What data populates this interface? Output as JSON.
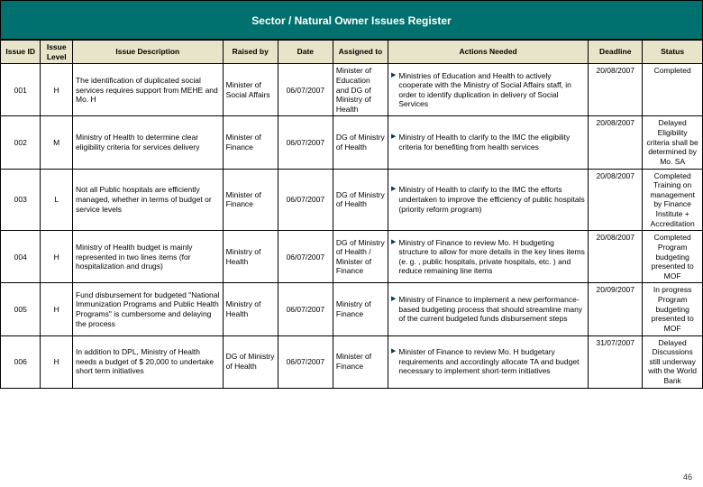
{
  "title": "Sector / Natural Owner Issues Register",
  "page_number": "46",
  "columns": {
    "id": "Issue ID",
    "level": "Issue Level",
    "desc": "Issue Description",
    "raised": "Raised by",
    "date": "Date",
    "assigned": "Assigned to",
    "actions": "Actions Needed",
    "deadline": "Deadline",
    "status": "Status"
  },
  "rows": [
    {
      "id": "001",
      "level": "H",
      "desc": "The identification of duplicated social services requires support from MEHE and Mo. H",
      "raised": "Minister of Social Affairs",
      "date": "06/07/2007",
      "assigned": "Minister of Education and DG of Ministry of Health",
      "action": "Ministries of Education and Health to actively cooperate with the Ministry of Social Affairs staff, in order to identify duplication in delivery of Social Services",
      "deadline": "20/08/2007",
      "status": "Completed"
    },
    {
      "id": "002",
      "level": "M",
      "desc": "Ministry of Health to determine clear eligibility criteria for services delivery",
      "raised": "Minister of Finance",
      "date": "06/07/2007",
      "assigned": "DG of Ministry of Health",
      "action": "Ministry of Health to clarify to the IMC the eligibility criteria for benefiting from health services",
      "deadline": "20/08/2007",
      "status": "Delayed Eligibility criteria shall be determined by Mo. SA"
    },
    {
      "id": "003",
      "level": "L",
      "desc": "Not all Public hospitals are efficiently managed, whether in terms of budget or service levels",
      "raised": "Minister of Finance",
      "date": "06/07/2007",
      "assigned": "DG of Ministry of Health",
      "action": "Ministry of Health to clarify to the IMC the efforts undertaken to improve the efficiency of public hospitals (priority reform program)",
      "deadline": "20/08/2007",
      "status": "Completed Training on management by Finance Institute + Accreditation"
    },
    {
      "id": "004",
      "level": "H",
      "desc": "Ministry of Health budget is mainly represented in two lines items (for hospitalization and drugs)",
      "raised": "Ministry of Health",
      "date": "06/07/2007",
      "assigned": "DG of Ministry of Health / Minister of Finance",
      "action": "Ministry of Finance to review Mo. H budgeting structure to allow for more details in the key lines items (e. g. , public hospitals, private hospitals, etc. ) and reduce remaining line items",
      "deadline": "20/08/2007",
      "status": "Completed Program budgeting presented to MOF"
    },
    {
      "id": "005",
      "level": "H",
      "desc": "Fund disbursement for budgeted \"National Immunization Programs and Public Health Programs\" is cumbersome and delaying the process",
      "raised": "Ministry of Health",
      "date": "06/07/2007",
      "assigned": "Ministry of Finance",
      "action": "Ministry of Finance to implement a new performance-based budgeting process that should streamline many of the current budgeted funds disbursement steps",
      "deadline": "20/09/2007",
      "status": "In progress Program budgeting presented to MOF"
    },
    {
      "id": "006",
      "level": "H",
      "desc": "In addition to DPL, Ministry of Health needs a budget of $ 20,000 to undertake short term initiatives",
      "raised": "DG of Ministry of Health",
      "date": "06/07/2007",
      "assigned": "Minister of Finance",
      "action": "Minister of Finance to review Mo. H budgetary requirements and accordingly allocate TA and budget necessary to implement short-term initiatives",
      "deadline": "31/07/2007",
      "status": "Delayed Discussions still underway with the World Bank"
    }
  ],
  "colors": {
    "header_bg": "#00716f",
    "th_bg": "#e8e4c9",
    "border": "#000000"
  }
}
